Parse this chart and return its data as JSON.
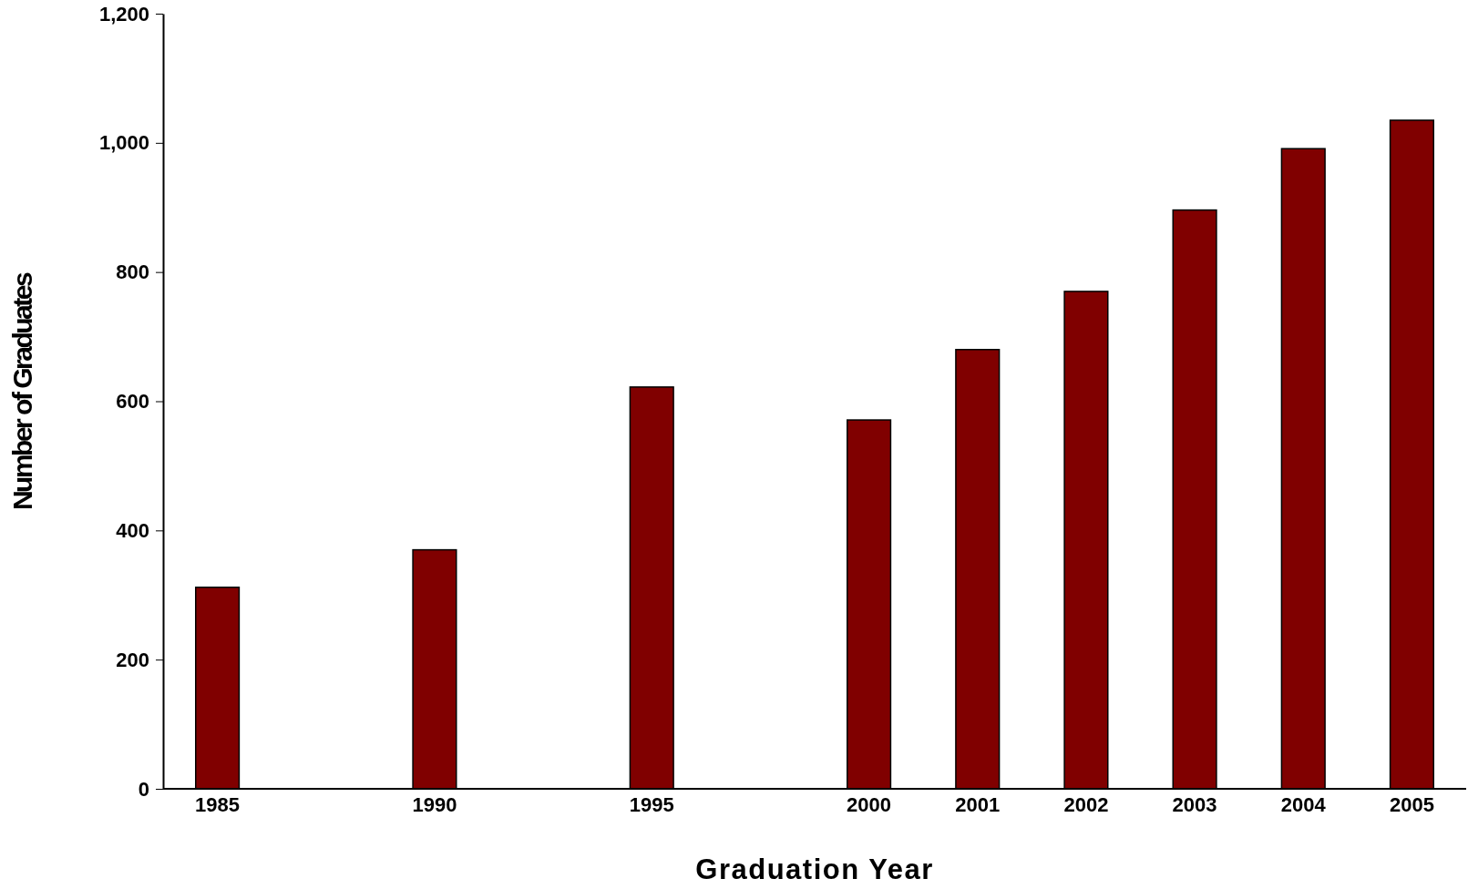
{
  "chart_data": {
    "type": "bar",
    "xlabel": "Graduation Year",
    "ylabel": "Number of Graduates",
    "categories": [
      "1985",
      null,
      "1990",
      null,
      "1995",
      null,
      "2000",
      "2001",
      "2002",
      "2003",
      "2004",
      "2005"
    ],
    "values": [
      312,
      null,
      370,
      null,
      622,
      null,
      571,
      680,
      770,
      896,
      991,
      1035
    ],
    "color": "#800000",
    "ylim": [
      0,
      1200
    ],
    "yticks": [
      0,
      200,
      400,
      600,
      800,
      {
        "value": 1000,
        "label": "1,000"
      },
      {
        "value": 1200,
        "label": "1,200"
      }
    ],
    "grid": false
  }
}
